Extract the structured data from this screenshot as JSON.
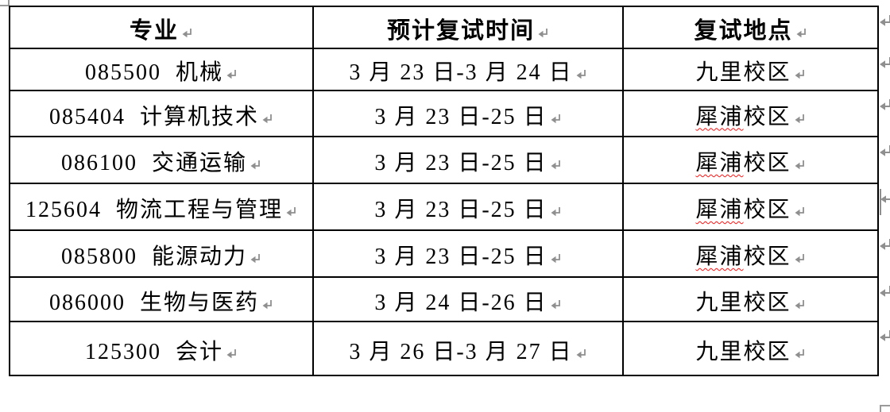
{
  "document": {
    "background": "#ffffff",
    "table_border_color": "#000000",
    "text_color": "#000000",
    "formatting_mark_color": "#8f8f8f",
    "handle_color": "#9a9a9a",
    "spellcheck_underline_color": "#ff1414"
  },
  "icons": {
    "paragraph_mark": "↵",
    "row_end_mark": "↵",
    "row_end_mark_bar": "⇤",
    "table_move_handle": "corner-fragment",
    "table_resize_handle": "corner-fragment"
  },
  "table": {
    "columns": [
      "专业",
      "预计复试时间",
      "复试地点"
    ],
    "rows": [
      {
        "major": "085500  机械",
        "time": "3 月 23 日-3 月 24 日",
        "campus": [
          {
            "text": "九里校区",
            "misspelled": false
          }
        ]
      },
      {
        "major": "085404  计算机技术",
        "time": "3 月 23 日-25 日",
        "campus": [
          {
            "text": "犀浦",
            "misspelled": true
          },
          {
            "text": "校区",
            "misspelled": false
          }
        ]
      },
      {
        "major": "086100  交通运输",
        "time": "3 月 23 日-25 日",
        "campus": [
          {
            "text": "犀浦",
            "misspelled": true
          },
          {
            "text": "校区",
            "misspelled": false
          }
        ]
      },
      {
        "major": "125604  物流工程与管理",
        "time": "3 月 23 日-25 日",
        "campus": [
          {
            "text": "犀浦",
            "misspelled": true
          },
          {
            "text": "校区",
            "misspelled": false
          }
        ],
        "end_mark": "bar"
      },
      {
        "major": "085800  能源动力",
        "time": "3 月 23 日-25 日",
        "campus": [
          {
            "text": "犀浦",
            "misspelled": true
          },
          {
            "text": "校区",
            "misspelled": false
          }
        ]
      },
      {
        "major": "086000  生物与医药",
        "time": "3 月 24 日-26 日",
        "campus": [
          {
            "text": "九里校区",
            "misspelled": false
          }
        ]
      },
      {
        "major": "125300  会计",
        "time": "3 月 26 日-3 月 27 日",
        "campus": [
          {
            "text": "九里校区",
            "misspelled": false
          }
        ]
      }
    ]
  }
}
